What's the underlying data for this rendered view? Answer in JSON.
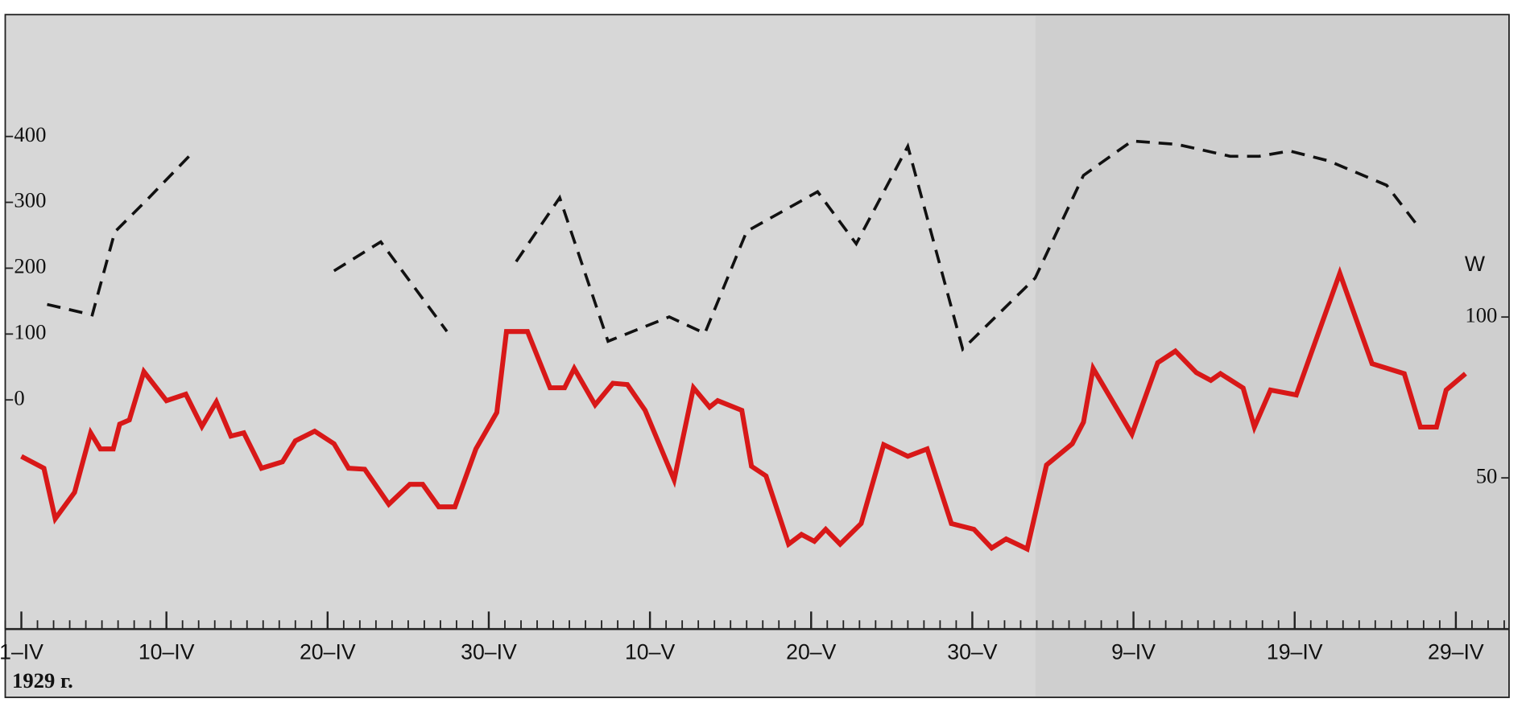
{
  "chart_data": {
    "type": "line",
    "x_note_label": "1929 г.",
    "y2_label": "W",
    "xlim": [
      0,
      93.3
    ],
    "ylim": [
      -348,
      585
    ],
    "y2lim": [
      3,
      194
    ],
    "xticks": [
      {
        "value": 1,
        "label": "1–IV"
      },
      {
        "value": 10,
        "label": "10–IV"
      },
      {
        "value": 20,
        "label": "20–IV"
      },
      {
        "value": 30,
        "label": "30–IV"
      },
      {
        "value": 40,
        "label": "10–V"
      },
      {
        "value": 50,
        "label": "20–V"
      },
      {
        "value": 60,
        "label": "30–V"
      },
      {
        "value": 70,
        "label": "9–IV"
      },
      {
        "value": 80,
        "label": "19–IV"
      },
      {
        "value": 90,
        "label": "29–IV"
      }
    ],
    "yticks": [
      0,
      100,
      200,
      300,
      400
    ],
    "y2ticks": [
      50,
      100
    ],
    "series": [
      {
        "color": "#111111",
        "dash": true,
        "axis": "y",
        "x": [
          2.6,
          5.4,
          6.8,
          8.8,
          11.6,
          16,
          20.4,
          23.3,
          27.4,
          29.5,
          31.7,
          34.4,
          37.4,
          41.2,
          43.4,
          46,
          50.4,
          52.8,
          56,
          59.4,
          63.9,
          66.9,
          69.9,
          72.7,
          76,
          77.8,
          79.7,
          82.1,
          85.7,
          87.8
        ],
        "values": [
          145,
          129,
          255,
          304,
          375,
          null,
          196,
          240,
          104,
          null,
          210,
          307,
          89,
          126,
          101,
          256,
          316,
          237,
          385,
          77,
          185,
          341,
          393,
          388,
          370,
          370,
          378,
          363,
          326,
          259
        ]
      },
      {
        "color": "#d81818",
        "dash": false,
        "axis": "y2",
        "x": [
          1,
          2.4,
          3.1,
          4.3,
          5.3,
          5.9,
          6.7,
          7.1,
          7.7,
          8.6,
          10,
          11.2,
          12.2,
          13.1,
          14,
          14.8,
          15.9,
          17.2,
          18,
          19.2,
          20.4,
          21.3,
          22.3,
          23.8,
          25.1,
          25.9,
          26.9,
          27.9,
          29.2,
          30.5,
          31.1,
          32.4,
          33.8,
          34.7,
          35.3,
          36.6,
          37.7,
          38.6,
          39.7,
          41.5,
          42.7,
          43.7,
          44.2,
          45.7,
          46.3,
          47.2,
          48.6,
          49.4,
          50.2,
          50.9,
          51.8,
          53.1,
          54.5,
          56,
          57.2,
          58.7,
          60.1,
          61.2,
          62.1,
          63.4,
          64.6,
          66.2,
          66.9,
          67.5,
          69.9,
          71.5,
          72.6,
          73.9,
          74.8,
          75.4,
          76.8,
          77.5,
          78.5,
          80.1,
          82.8,
          84.8,
          86.8,
          87.8,
          88.8,
          89.4,
          90.6
        ],
        "values": [
          56.7,
          53,
          37.3,
          45.5,
          64,
          59,
          59,
          66.7,
          68,
          83,
          74,
          76,
          66,
          73.6,
          63,
          64,
          53,
          55,
          61.5,
          64.5,
          60.6,
          53,
          52.7,
          41.8,
          48,
          48,
          41,
          41,
          59,
          70.3,
          95.5,
          95.5,
          78,
          78,
          84,
          72.7,
          79.4,
          79,
          71,
          49.4,
          78,
          72,
          74,
          71,
          53.6,
          50.6,
          29.4,
          32.4,
          30.3,
          34,
          29.4,
          35.8,
          60.3,
          56.7,
          59,
          35.8,
          34,
          28.2,
          31,
          27.9,
          54,
          60.6,
          67.3,
          84,
          63.6,
          85.8,
          89.4,
          82.7,
          80.3,
          82.4,
          77.9,
          65.8,
          77.3,
          75.8,
          113.6,
          85.5,
          82.4,
          65.8,
          65.8,
          77.3,
          82.4
        ]
      }
    ]
  }
}
